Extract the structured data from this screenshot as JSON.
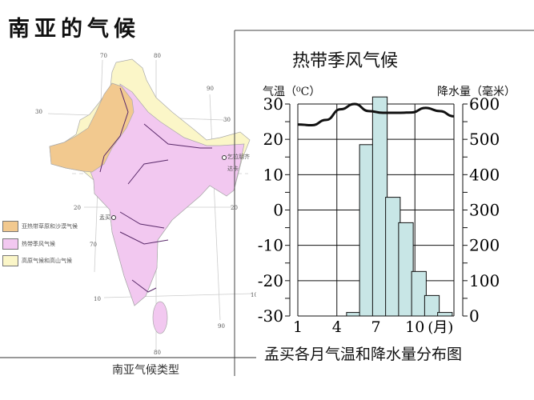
{
  "page_title": "南亚的气候",
  "map": {
    "caption": "南亚气候类型",
    "legend": [
      {
        "label": "亚热带草原和沙漠气候",
        "color": "#f2c98f"
      },
      {
        "label": "热带季风气候",
        "color": "#f2c8f0"
      },
      {
        "label": "高原气候和高山气候",
        "color": "#fbf6c8"
      }
    ],
    "grid_labels": [
      "70",
      "80",
      "90",
      "30",
      "30",
      "20",
      "20",
      "70",
      "10",
      "10",
      "90",
      "80"
    ],
    "places": [
      "乞拉朋齐",
      "达卡",
      "孟买"
    ]
  },
  "chart_data": {
    "type": "bar+line",
    "title": "热带季风气候",
    "caption": "孟买各月气温和降水量分布图",
    "x": [
      1,
      2,
      3,
      4,
      5,
      6,
      7,
      8,
      9,
      10,
      11,
      12
    ],
    "xticks": [
      "1",
      "4",
      "7",
      "10"
    ],
    "xunit": "(月)",
    "left_axis": {
      "label": "气温（⁰C）",
      "range": [
        -30,
        30
      ],
      "ticks": [
        "30",
        "20",
        "10",
        "0",
        "-10",
        "-20",
        "-30"
      ]
    },
    "right_axis": {
      "label": "降水量（毫米）",
      "range": [
        0,
        600
      ],
      "ticks": [
        "600",
        "500",
        "400",
        "300",
        "200",
        "100",
        "0"
      ]
    },
    "series": [
      {
        "kind": "line",
        "axis": "left",
        "values": [
          24.2,
          24,
          25.5,
          28.5,
          30,
          28,
          27.5,
          27.5,
          27.6,
          28.9,
          28,
          26.5
        ]
      },
      {
        "kind": "bar",
        "axis": "right",
        "values": [
          0,
          0,
          0,
          10,
          485,
          620,
          336,
          264,
          126,
          58,
          10,
          0
        ]
      }
    ],
    "bar_color": "#c8e6e6",
    "grid": true
  }
}
